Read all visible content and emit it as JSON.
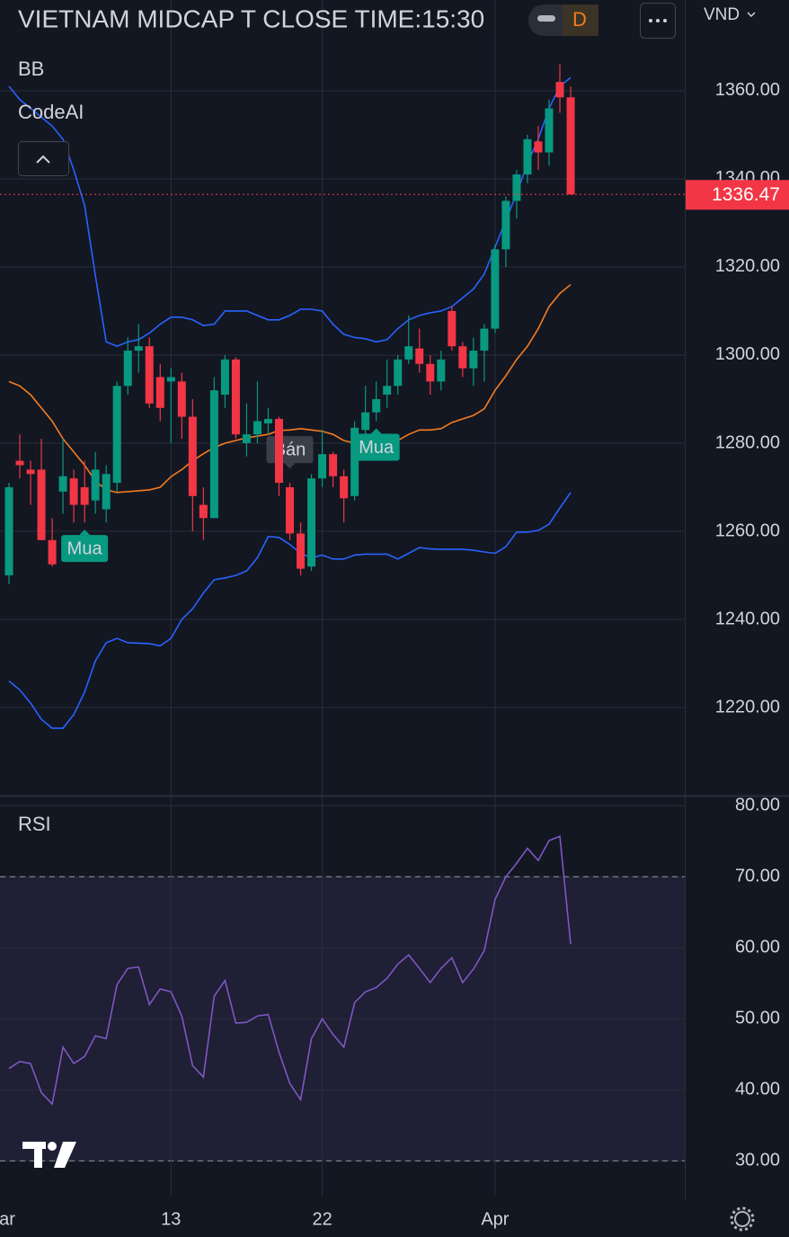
{
  "header": {
    "title": "VIETNAM MIDCAP T CLOSE TIME:15:30",
    "interval": "D",
    "currency": "VND"
  },
  "chart_data": [
    {
      "type": "candlestick",
      "title": "BB",
      "subtitle": "CodeAI",
      "categories": [
        "ar",
        null,
        null,
        null,
        null,
        null,
        null,
        null,
        null,
        null,
        null,
        null,
        null,
        null,
        null,
        "13",
        null,
        null,
        null,
        null,
        null,
        null,
        null,
        null,
        null,
        null,
        null,
        null,
        null,
        "22",
        null,
        null,
        null,
        null,
        null,
        null,
        null,
        null,
        null,
        null,
        null,
        null,
        null,
        null,
        null,
        "Apr",
        null,
        null,
        null,
        null,
        null,
        null,
        null
      ],
      "open": [
        1250,
        1276,
        1274,
        1274,
        1258,
        1269,
        1272,
        1270,
        1267,
        1265,
        1271,
        1293,
        1301,
        1302,
        1295,
        1294,
        1294,
        1286,
        1266,
        1263,
        1291,
        1299,
        1280,
        1282,
        1284.5,
        1285.5,
        1270,
        1259.5,
        1252,
        1272,
        1277.5,
        1272.5,
        1268,
        1283,
        1287,
        1291,
        1293,
        1299,
        1301.5,
        1298,
        1294,
        1310,
        1302,
        1297,
        1301,
        1306,
        1324,
        1335,
        1341,
        1348.5,
        1346,
        1362,
        1358.5
      ],
      "high": [
        1271,
        1282,
        1276,
        1281,
        1263,
        1281,
        1274,
        1276,
        1278,
        1275,
        1294,
        1304,
        1307,
        1304,
        1298,
        1297,
        1296,
        1290,
        1270,
        1295,
        1300,
        1299.5,
        1289,
        1294,
        1288,
        1286,
        1271,
        1262,
        1273,
        1283,
        1278,
        1274,
        1285,
        1293,
        1294,
        1299,
        1300,
        1309,
        1306,
        1300,
        1301,
        1311,
        1303,
        1304,
        1307,
        1325,
        1336,
        1342,
        1350,
        1352,
        1358,
        1366,
        1361
      ],
      "low": [
        1248,
        1272,
        1266,
        1258,
        1252,
        1264,
        1262,
        1262,
        1264,
        1262,
        1269,
        1291,
        1296,
        1288,
        1285,
        1280,
        1281,
        1260,
        1258,
        1263,
        1288,
        1281,
        1277,
        1280,
        1282,
        1268,
        1258,
        1250,
        1251,
        1270,
        1270,
        1262,
        1267,
        1281,
        1285,
        1288,
        1291,
        1298,
        1296,
        1291,
        1292,
        1301,
        1295,
        1293,
        1294,
        1305,
        1320,
        1331,
        1339,
        1342,
        1343,
        1355,
        1336.47
      ],
      "close": [
        1270,
        1275,
        1273,
        1258,
        1252.5,
        1272.5,
        1266,
        1266,
        1274,
        1273,
        1293,
        1301,
        1302,
        1289,
        1288,
        1295,
        1286,
        1268,
        1263,
        1292,
        1299,
        1282,
        1282,
        1285,
        1285.5,
        1271,
        1259.5,
        1251.5,
        1272,
        1277.5,
        1272.5,
        1267.5,
        1283.5,
        1287,
        1290,
        1293,
        1299,
        1302,
        1298,
        1294,
        1299,
        1302,
        1297,
        1301,
        1306,
        1324,
        1335,
        1341,
        1349,
        1346,
        1356,
        1358.5,
        1336.47
      ],
      "bb": {
        "upper": [
          1361,
          1358,
          1356,
          1354,
          1352,
          1349,
          1342,
          1334,
          1318,
          1303,
          1302,
          1303,
          1303.5,
          1305,
          1307,
          1308.6,
          1308.6,
          1308,
          1306.7,
          1307,
          1310,
          1310,
          1310,
          1309,
          1308,
          1308,
          1309,
          1310.4,
          1310.4,
          1310,
          1307,
          1304.7,
          1304,
          1303.7,
          1303,
          1303.5,
          1306,
          1308,
          1309,
          1309.6,
          1310,
          1311,
          1313,
          1315,
          1318.4,
          1324.5,
          1330.6,
          1336.7,
          1343.5,
          1349,
          1356,
          1361,
          1363
        ],
        "middle": [
          1294,
          1293,
          1291,
          1288,
          1285,
          1281,
          1278,
          1275,
          1271.4,
          1269.4,
          1268.8,
          1269,
          1269.2,
          1269.4,
          1270,
          1272.4,
          1274,
          1276,
          1277.6,
          1279,
          1280,
          1280.6,
          1281.2,
          1281.6,
          1282,
          1282.9,
          1283,
          1283.3,
          1283,
          1282.7,
          1282,
          1280.6,
          1280,
          1279,
          1279,
          1279,
          1280.6,
          1282,
          1283,
          1283,
          1283.3,
          1284.7,
          1285.5,
          1286.3,
          1287.8,
          1292,
          1295.3,
          1299,
          1302,
          1306,
          1311,
          1314,
          1316
        ],
        "lower": [
          1226,
          1224,
          1221,
          1217.3,
          1215.3,
          1215.3,
          1218.4,
          1223.5,
          1230.6,
          1234.7,
          1235.7,
          1234.7,
          1234.6,
          1234.5,
          1234,
          1235.7,
          1240,
          1242.4,
          1246,
          1249,
          1249.4,
          1250,
          1251,
          1254,
          1258.8,
          1258.6,
          1257,
          1255,
          1254,
          1254.6,
          1253.7,
          1253.7,
          1254.6,
          1254.8,
          1254.8,
          1254.8,
          1253.7,
          1255,
          1256.3,
          1256,
          1255.9,
          1255.9,
          1255.9,
          1255.7,
          1255.3,
          1255,
          1256.5,
          1259.8,
          1259.8,
          1260.2,
          1261.6,
          1265.3,
          1268.8
        ],
        "band_color": "#2962ff",
        "middle_color": "#f57c1f"
      },
      "annotations": [
        {
          "text": "Mua",
          "index": 7,
          "position": "below",
          "color": "#089981"
        },
        {
          "text": "Bán",
          "index": 26,
          "position": "above",
          "color": "#3b3f4a"
        },
        {
          "text": "Mua",
          "index": 34,
          "position": "below",
          "color": "#089981"
        }
      ],
      "last_price": 1336.47,
      "up_color": "#089981",
      "down_color": "#f23645",
      "ylim": [
        1200,
        1380.6
      ],
      "yticks": [
        {
          "value": 1220,
          "label": "1220.00"
        },
        {
          "value": 1240,
          "label": "1240.00"
        },
        {
          "value": 1260,
          "label": "1260.00"
        },
        {
          "value": 1280,
          "label": "1280.00"
        },
        {
          "value": 1300,
          "label": "1300.00"
        },
        {
          "value": 1320,
          "label": "1320.00"
        },
        {
          "value": 1340,
          "label": "1340.00"
        },
        {
          "value": 1360,
          "label": "1360.00"
        }
      ],
      "grid": true
    },
    {
      "type": "line",
      "title": "RSI",
      "values": [
        43,
        44,
        43.7,
        39.6,
        38,
        46,
        43.7,
        44.7,
        47.6,
        47.2,
        54.8,
        57.1,
        57.3,
        52,
        54.2,
        53.8,
        50.4,
        43.4,
        41.8,
        53.2,
        55.4,
        49.4,
        49.5,
        50.4,
        50.6,
        45.3,
        40.9,
        38.6,
        47.2,
        50,
        47.8,
        46,
        52.3,
        53.8,
        54.4,
        55.7,
        57.7,
        59,
        57.1,
        55.1,
        57.1,
        58.6,
        55.1,
        57,
        59.6,
        66.8,
        70,
        71.9,
        74,
        72.3,
        75.1,
        75.7,
        60.5
      ],
      "color": "#7e57c2",
      "levels": [
        30,
        70
      ],
      "ylim": [
        25.1,
        81.3
      ],
      "yticks": [
        {
          "value": 30,
          "label": "30.00"
        },
        {
          "value": 40,
          "label": "40.00"
        },
        {
          "value": 50,
          "label": "50.00"
        },
        {
          "value": 60,
          "label": "60.00"
        },
        {
          "value": 70,
          "label": "70.00"
        },
        {
          "value": 80,
          "label": "80.00"
        }
      ],
      "grid": true
    }
  ]
}
